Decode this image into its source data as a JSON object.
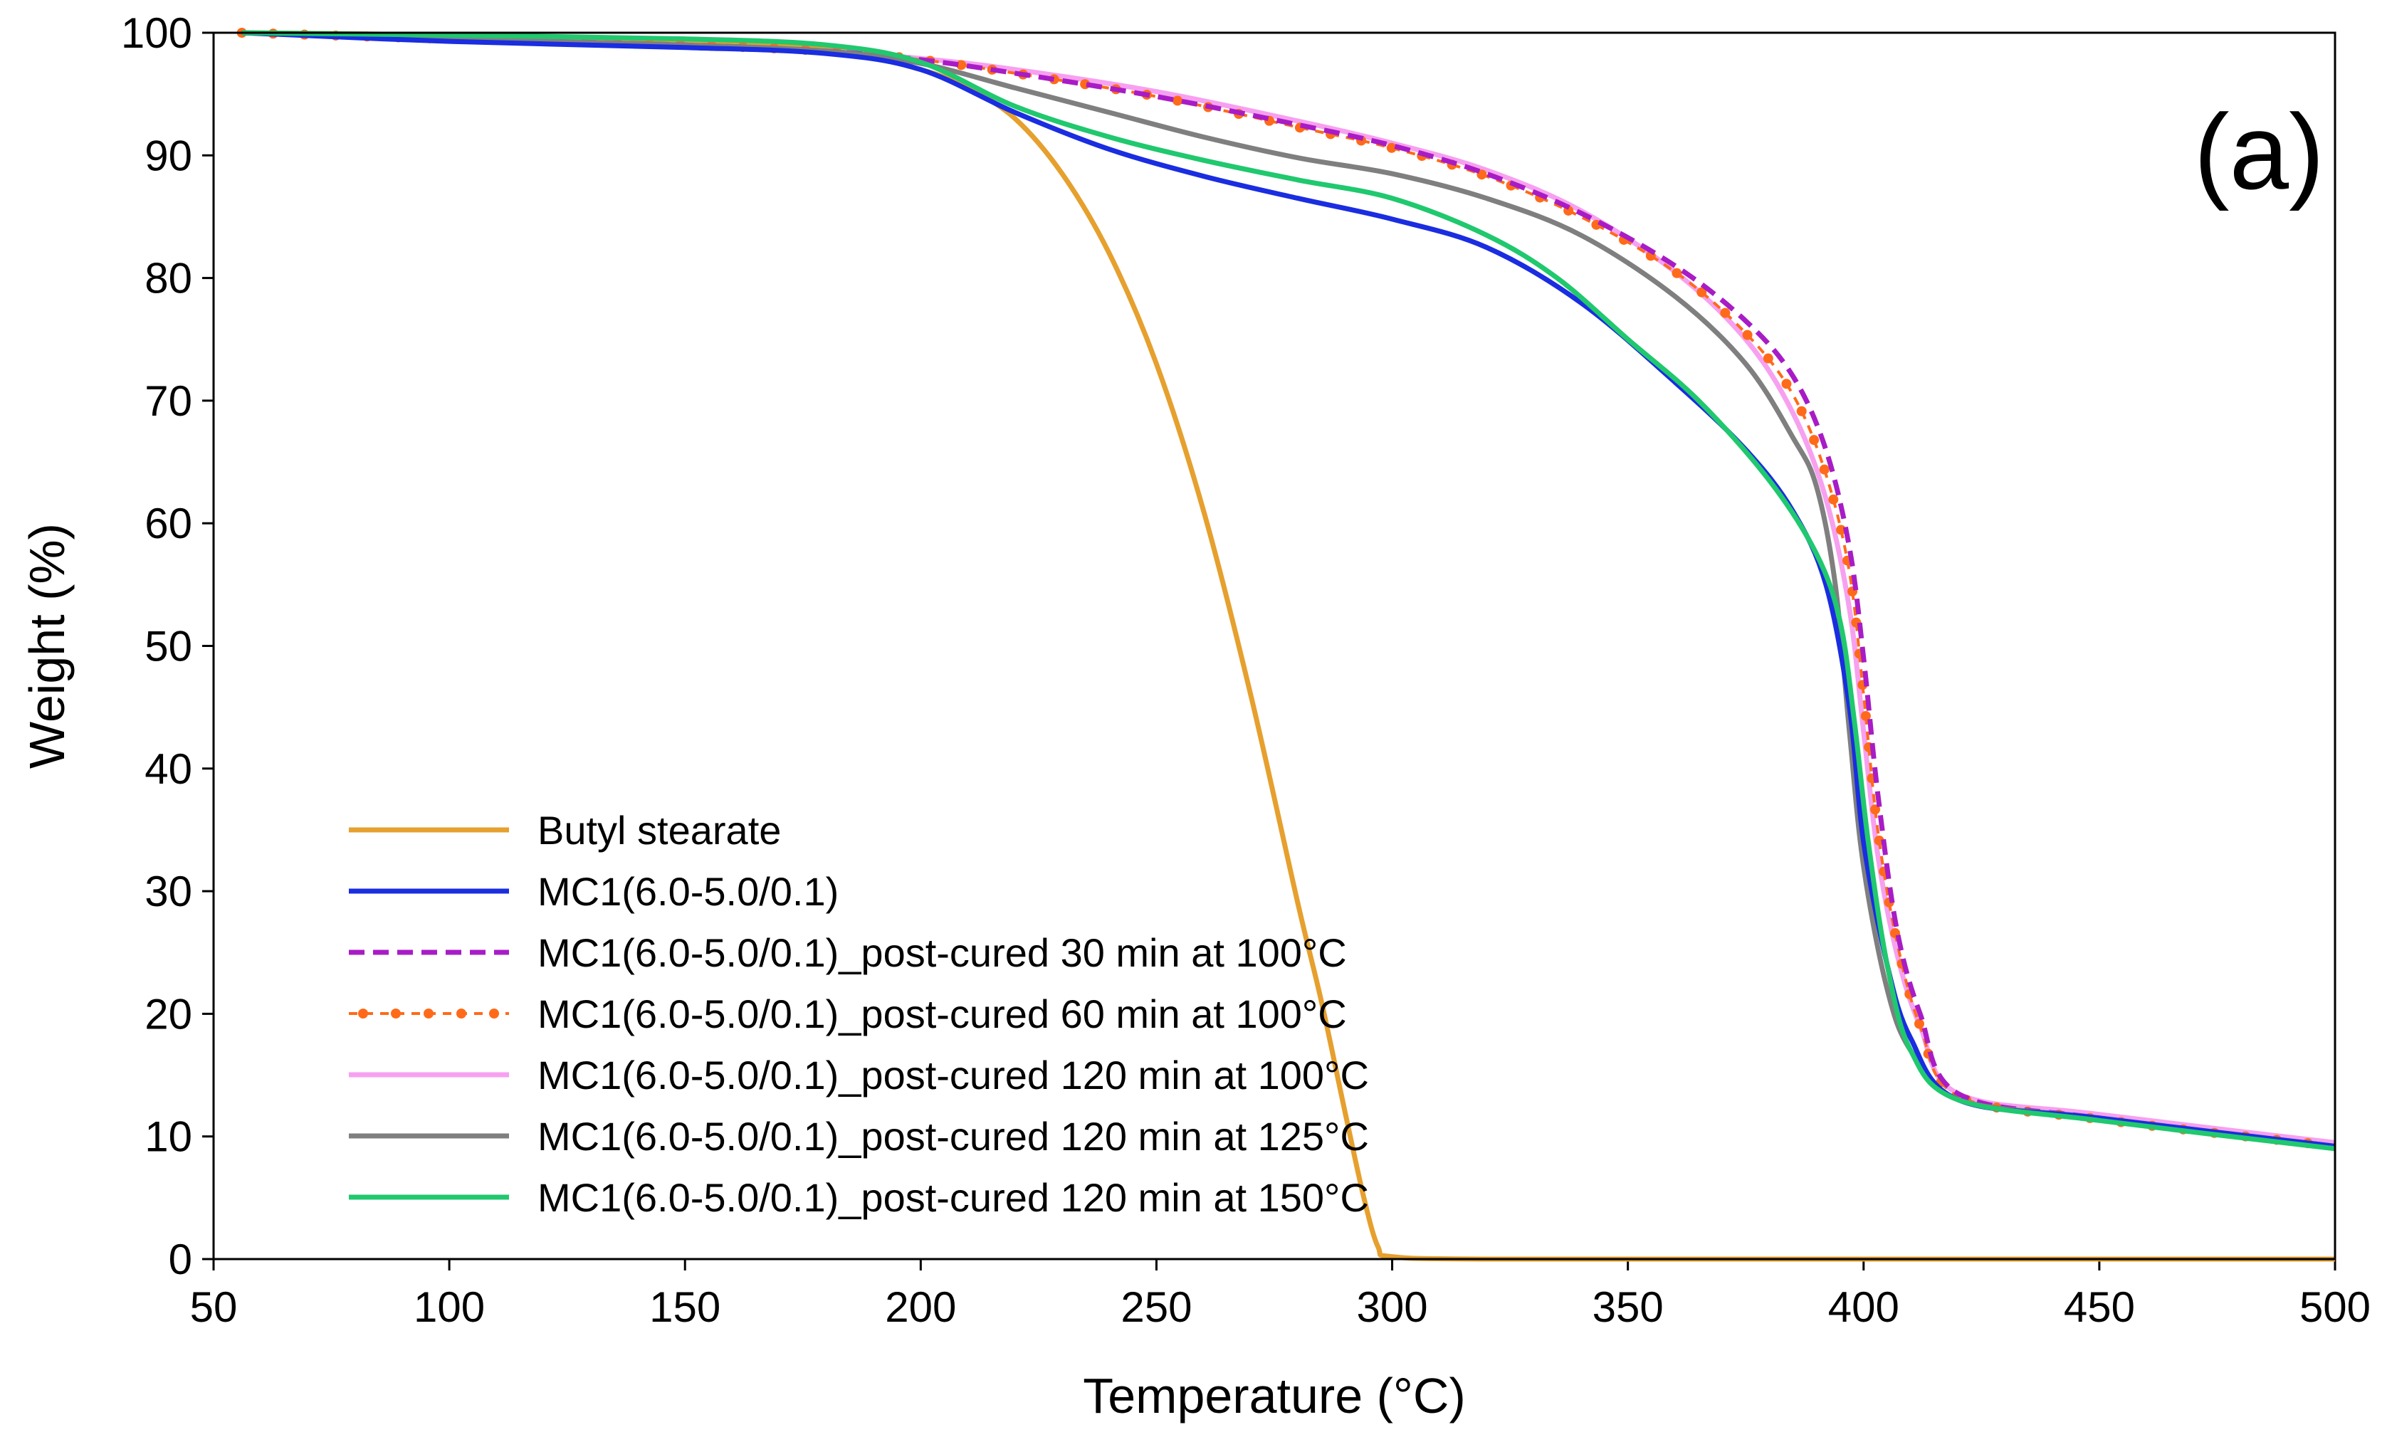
{
  "chart_data": {
    "type": "line",
    "panel_label": "(a)",
    "xlabel": "Temperature (°C)",
    "ylabel": "Weight (%)",
    "xlim": [
      50,
      500
    ],
    "ylim": [
      0,
      100
    ],
    "xticks": [
      "50",
      "100",
      "150",
      "200",
      "250",
      "300",
      "350",
      "400",
      "450",
      "500"
    ],
    "yticks": [
      "0",
      "10",
      "20",
      "30",
      "40",
      "50",
      "60",
      "70",
      "80",
      "90",
      "100"
    ],
    "grid": false,
    "legend_position": "bottom-left",
    "series": [
      {
        "name": "Butyl stearate",
        "color": "#E6A02E",
        "style": "solid",
        "x": [
          56,
          100,
          150,
          180,
          200,
          210,
          220,
          230,
          240,
          250,
          260,
          270,
          280,
          285,
          290,
          294,
          297,
          300,
          320,
          400,
          500
        ],
        "y": [
          100,
          99.8,
          99.3,
          98.7,
          97,
          95.5,
          93,
          88.5,
          82,
          73,
          61,
          46,
          29,
          21,
          12,
          5,
          1,
          0.2,
          0,
          0,
          0
        ]
      },
      {
        "name": "MC1(6.0-5.0/0.1)",
        "color": "#1A2DE0",
        "style": "solid",
        "x": [
          56,
          100,
          150,
          180,
          200,
          220,
          240,
          260,
          280,
          300,
          320,
          340,
          360,
          375,
          385,
          392,
          397,
          400,
          405,
          410,
          420,
          450,
          500
        ],
        "y": [
          100,
          99.3,
          98.8,
          98.3,
          97,
          93.5,
          90.5,
          88.3,
          86.5,
          84.8,
          82.5,
          78,
          71.5,
          66,
          61,
          55,
          45,
          34,
          24,
          18,
          13,
          11.5,
          9.2
        ]
      },
      {
        "name": "MC1(6.0-5.0/0.1)_post-cured 30 min at 100°C",
        "color": "#A81CC6",
        "style": "dashed",
        "x": [
          56,
          100,
          150,
          180,
          200,
          220,
          250,
          280,
          300,
          320,
          340,
          360,
          375,
          385,
          392,
          397,
          400,
          403,
          407,
          412,
          420,
          450,
          500
        ],
        "y": [
          100,
          99.5,
          99,
          98.5,
          97.8,
          96.7,
          94.8,
          92.5,
          90.8,
          88.5,
          85.3,
          81,
          76.5,
          72,
          66,
          58,
          49,
          38,
          27,
          20,
          13.5,
          11.5,
          9.2
        ]
      },
      {
        "name": "MC1(6.0-5.0/0.1)_post-cured 60 min at 100°C",
        "color": "#FF6A1A",
        "style": "dotted-dashed",
        "x": [
          56,
          100,
          150,
          180,
          200,
          220,
          250,
          280,
          300,
          320,
          340,
          360,
          375,
          385,
          392,
          397,
          400,
          403,
          407,
          412,
          420,
          450,
          500
        ],
        "y": [
          100,
          99.5,
          99,
          98.5,
          97.8,
          96.7,
          94.8,
          92.3,
          90.6,
          88.3,
          85,
          80.5,
          75.5,
          70.5,
          64,
          56,
          46,
          35,
          26,
          19,
          13.3,
          11.4,
          9.2
        ]
      },
      {
        "name": "MC1(6.0-5.0/0.1)_post-cured 120 min at 100°C",
        "color": "#F7A0F0",
        "style": "solid",
        "x": [
          56,
          100,
          150,
          180,
          200,
          220,
          250,
          280,
          300,
          320,
          340,
          360,
          375,
          385,
          392,
          397,
          400,
          403,
          407,
          412,
          420,
          450,
          500
        ],
        "y": [
          100,
          99.5,
          99,
          98.5,
          97.9,
          97,
          95.2,
          92.8,
          91,
          88.8,
          85.5,
          80.5,
          75,
          69,
          62,
          53,
          43,
          33,
          25,
          19,
          13.5,
          11.8,
          9.5
        ]
      },
      {
        "name": "MC1(6.0-5.0/0.1)_post-cured 120 min at 125°C",
        "color": "#7F7F7F",
        "style": "solid",
        "x": [
          56,
          100,
          150,
          180,
          200,
          220,
          240,
          260,
          280,
          300,
          320,
          340,
          360,
          375,
          385,
          390,
          394,
          397,
          400,
          405,
          410,
          420,
          450,
          500
        ],
        "y": [
          100,
          99.5,
          99,
          98.5,
          97.5,
          95.5,
          93.5,
          91.5,
          89.8,
          88.5,
          86.5,
          83.5,
          78.5,
          73,
          67,
          63,
          55,
          43,
          32,
          22,
          17,
          13,
          11.5,
          9.2
        ]
      },
      {
        "name": "MC1(6.0-5.0/0.1)_post-cured 120 min at 150°C",
        "color": "#20C86E",
        "style": "solid",
        "x": [
          56,
          100,
          150,
          180,
          200,
          220,
          240,
          260,
          280,
          300,
          320,
          335,
          350,
          365,
          380,
          390,
          395,
          398,
          401,
          405,
          410,
          420,
          450,
          500
        ],
        "y": [
          100,
          99.8,
          99.5,
          99,
          97.6,
          94,
          91.5,
          89.6,
          88,
          86.5,
          83.5,
          80,
          75,
          70,
          63.5,
          57.5,
          52,
          44,
          34,
          24,
          17,
          13,
          11.3,
          9
        ]
      }
    ]
  }
}
